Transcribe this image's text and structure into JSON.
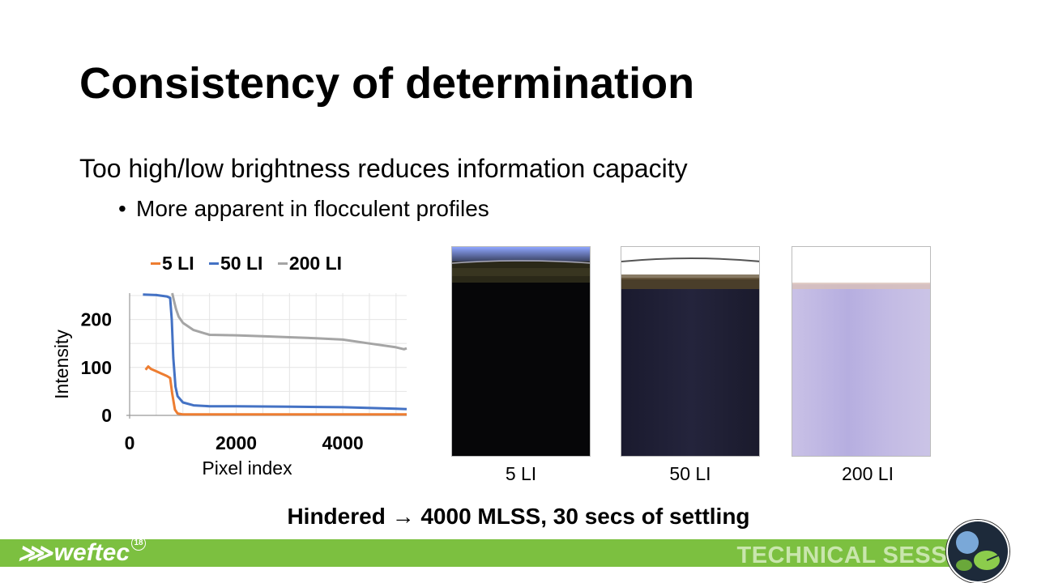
{
  "slide": {
    "title": "Consistency of determination",
    "subtitle": "Too high/low brightness reduces information capacity",
    "bullet": "More apparent in flocculent profiles",
    "bullet_marker": "•",
    "footer_text": "Hindered → 4000 MLSS, 30 secs of settling",
    "band_label": "TECHNICAL SESSION",
    "logo_text": "weftec",
    "logo_number": "18"
  },
  "photos": [
    {
      "caption": "5 LI"
    },
    {
      "caption": "50 LI"
    },
    {
      "caption": "200 LI"
    }
  ],
  "colors": {
    "accent_green": "#7cc040",
    "series_5": "#ed7d31",
    "series_50": "#4472c4",
    "series_200": "#a5a5a5"
  },
  "chart_data": {
    "type": "line",
    "xlabel": "Pixel index",
    "ylabel": "Intensity",
    "xlim": [
      0,
      5200
    ],
    "ylim": [
      0,
      255
    ],
    "x_ticks": [
      "0",
      "2000",
      "4000"
    ],
    "x_tick_values": [
      0,
      2000,
      4000
    ],
    "y_ticks": [
      "0",
      "100",
      "200"
    ],
    "y_tick_values": [
      0,
      100,
      200
    ],
    "grid": true,
    "legend_position": "top",
    "series": [
      {
        "name": "5 LI",
        "color": "#ed7d31",
        "x": [
          300,
          350,
          400,
          500,
          600,
          700,
          760,
          800,
          850,
          900,
          1000,
          1500,
          2000,
          3000,
          4000,
          5200
        ],
        "y": [
          95,
          102,
          97,
          92,
          87,
          82,
          78,
          45,
          12,
          4,
          2,
          2,
          2,
          2,
          2,
          2
        ]
      },
      {
        "name": "50 LI",
        "color": "#4472c4",
        "x": [
          250,
          500,
          700,
          760,
          790,
          820,
          860,
          900,
          1000,
          1200,
          1500,
          2000,
          3000,
          4000,
          5000,
          5200
        ],
        "y": [
          252,
          251,
          248,
          245,
          200,
          120,
          60,
          40,
          27,
          21,
          19,
          19,
          18,
          17,
          14,
          13
        ]
      },
      {
        "name": "200 LI",
        "color": "#a5a5a5",
        "x": [
          800,
          830,
          870,
          920,
          1000,
          1200,
          1500,
          2000,
          2500,
          3000,
          3500,
          4000,
          4500,
          5000,
          5150,
          5200
        ],
        "y": [
          255,
          240,
          222,
          206,
          193,
          178,
          168,
          167,
          165,
          163,
          161,
          158,
          150,
          142,
          138,
          140
        ]
      }
    ]
  }
}
